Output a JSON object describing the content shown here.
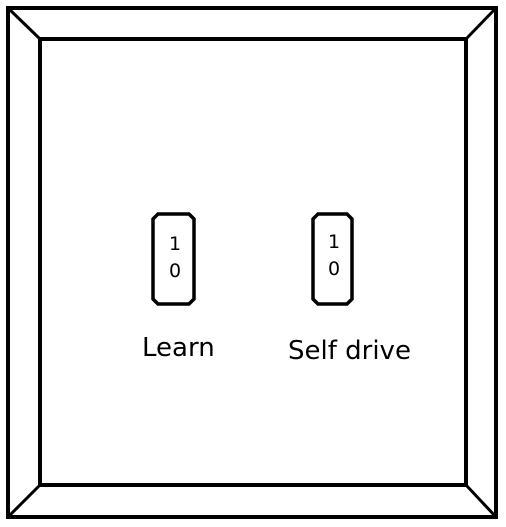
{
  "colors": {
    "stroke": "#000000",
    "background": "#ffffff"
  },
  "switches": [
    {
      "label": "Learn",
      "on_text": "1",
      "off_text": "0"
    },
    {
      "label": "Self drive",
      "on_text": "1",
      "off_text": "0"
    }
  ]
}
